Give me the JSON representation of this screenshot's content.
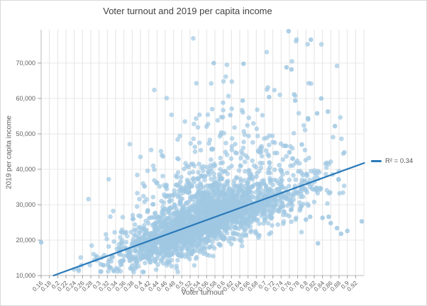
{
  "window": {
    "background": "#ffffff",
    "border_color": "#d9d9d9"
  },
  "colors": {
    "title_text": "#424242",
    "tick_label_text": "#616161",
    "axis_title_text": "#5f5f5f",
    "grid_vertical": "#e3e3e3",
    "grid_horizontal": "#e8e8e8",
    "axis_line": "#b8b8b8",
    "tick_mark": "#9e9e9e"
  },
  "chart_data": {
    "type": "scatter",
    "title": "Voter turnout and 2019 per capita income",
    "xlabel": "Voter turnout",
    "ylabel": "2019 per capita income",
    "xlim": [
      0.16,
      0.94
    ],
    "ylim": [
      10000,
      79400
    ],
    "grid": true,
    "x_ticks": [
      0.16,
      0.18,
      0.2,
      0.22,
      0.24,
      0.26,
      0.28,
      0.3,
      0.32,
      0.34,
      0.36,
      0.38,
      0.4,
      0.42,
      0.44,
      0.46,
      0.48,
      0.5,
      0.52,
      0.54,
      0.56,
      0.58,
      0.6,
      0.62,
      0.64,
      0.66,
      0.68,
      0.7,
      0.72,
      0.74,
      0.76,
      0.78,
      0.8,
      0.82,
      0.84,
      0.86,
      0.88,
      0.9,
      0.92
    ],
    "x_tick_labels": [
      "0.16",
      "0.18",
      "0.2",
      "0.22",
      "0.24",
      "0.26",
      "0.28",
      "0.3",
      "0.32",
      "0.34",
      "0.36",
      "0.38",
      "0.4",
      "0.42",
      "0.44",
      "0.46",
      "0.48",
      "0.5",
      "0.52",
      "0.54",
      "0.56",
      "0.58",
      "0.6",
      "0.62",
      "0.64",
      "0.66",
      "0.68",
      "0.7",
      "0.72",
      "0.74",
      "0.76",
      "0.78",
      "0.8",
      "0.82",
      "0.84",
      "0.86",
      "0.88",
      "0.9",
      "0.92"
    ],
    "y_ticks": [
      10000,
      20000,
      30000,
      40000,
      50000,
      60000,
      70000
    ],
    "y_tick_labels": [
      "10,000",
      "20,000",
      "30,000",
      "40,000",
      "50,000",
      "60,000",
      "70,000"
    ],
    "point_color": "#a0c8e2",
    "point_opacity": 0.7,
    "point_radius": 3.3,
    "trendline": {
      "x1": 0.19,
      "y1": 10000,
      "x2": 0.941,
      "y2": 41800,
      "color": "#2a7ab9",
      "width": 2.2,
      "r_squared": 0.34
    },
    "legend": {
      "label": "R² = 0.34",
      "position": "right"
    },
    "highlight_points": [
      [
        0.16,
        19400
      ],
      [
        0.41,
        35200
      ],
      [
        0.486,
        35600
      ],
      [
        0.577,
        70000
      ],
      [
        0.649,
        69800
      ],
      [
        0.647,
        59400
      ],
      [
        0.617,
        55300
      ],
      [
        0.711,
        60400
      ],
      [
        0.758,
        79000
      ],
      [
        0.753,
        68800
      ],
      [
        0.765,
        68200
      ],
      [
        0.774,
        59400
      ],
      [
        0.812,
        76600
      ],
      [
        0.805,
        54400
      ],
      [
        0.827,
        55800
      ],
      [
        0.837,
        60000
      ],
      [
        0.853,
        56300
      ],
      [
        0.87,
        52200
      ],
      [
        0.829,
        19100
      ],
      [
        0.84,
        26300
      ],
      [
        0.855,
        26600
      ],
      [
        0.875,
        23400
      ],
      [
        0.9,
        22600
      ],
      [
        0.935,
        25300
      ],
      [
        0.8,
        25800
      ],
      [
        0.81,
        26600
      ],
      [
        0.86,
        24800
      ],
      [
        0.885,
        21800
      ],
      [
        0.76,
        44800
      ],
      [
        0.79,
        47000
      ]
    ],
    "cloud": {
      "comment": "dense unresolvable point cloud (~county-level data); regenerated from distribution matching the pixels",
      "count": 2700,
      "seed": 42,
      "x_mix": [
        {
          "w": 0.78,
          "m": 0.545,
          "s": 0.082
        },
        {
          "w": 0.16,
          "m": 0.71,
          "s": 0.085
        },
        {
          "w": 0.06,
          "m": 0.4,
          "s": 0.07
        }
      ],
      "x_min": 0.162,
      "x_max": 0.935,
      "slope": 42400,
      "intercept": 1944,
      "s_lo": 4400,
      "s_lo_b": 0.7,
      "s_lo_g": 0.6,
      "s_hi": 4300,
      "s_hi_b": 0.6,
      "s_hi_g": 1.5,
      "exp_k": 0.8,
      "y_min": 10900,
      "y_max": 77000
    }
  }
}
